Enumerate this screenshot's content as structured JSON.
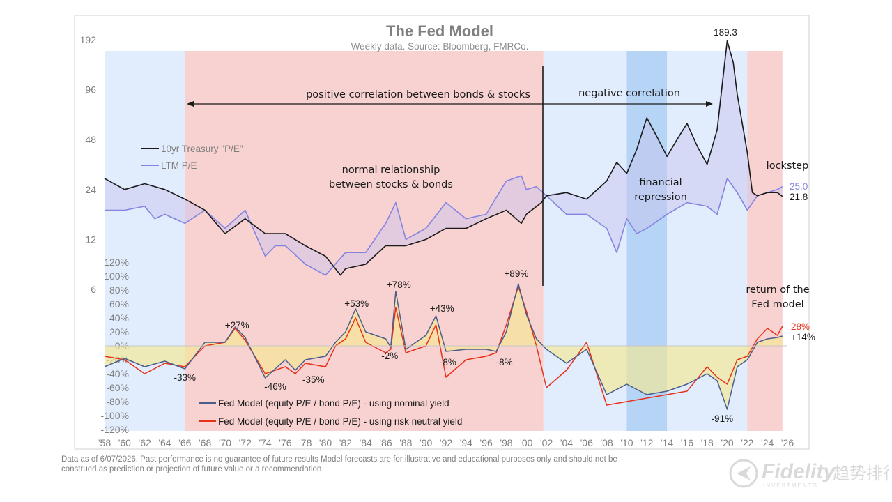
{
  "chart_data": {
    "type": "line",
    "title": "The Fed Model",
    "subtitle": "Weekly data.  Source: Bloomberg, FMRCo.",
    "x_ticks": [
      "'58",
      "'60",
      "'62",
      "'64",
      "'66",
      "'68",
      "'70",
      "'72",
      "'74",
      "'76",
      "'78",
      "'80",
      "'82",
      "'84",
      "'86",
      "'88",
      "'90",
      "'92",
      "'94",
      "'96",
      "'98",
      "'00",
      "'02",
      "'04",
      "'06",
      "'08",
      "'10",
      "'12",
      "'14",
      "'16",
      "'18",
      "'20",
      "'22",
      "'24",
      "'26"
    ],
    "top_panel": {
      "y_scale": "log2",
      "ylim": [
        6,
        192
      ],
      "y_ticks": [
        "192",
        "96",
        "48",
        "24",
        "12",
        "6"
      ],
      "y_tick_values": [
        192,
        96,
        48,
        24,
        12,
        6
      ],
      "series": [
        {
          "name": "10yr Treasury \"P/E\"",
          "color": "#1a1a1a",
          "points": [
            [
              1958,
              28
            ],
            [
              1960,
              24
            ],
            [
              1962,
              26
            ],
            [
              1964,
              24
            ],
            [
              1966,
              21
            ],
            [
              1968,
              18
            ],
            [
              1970,
              13
            ],
            [
              1972,
              16
            ],
            [
              1974,
              13
            ],
            [
              1976,
              13
            ],
            [
              1978,
              11
            ],
            [
              1980,
              9.5
            ],
            [
              1981.5,
              7.3
            ],
            [
              1982,
              8
            ],
            [
              1984,
              8.5
            ],
            [
              1986,
              11
            ],
            [
              1987.5,
              11
            ],
            [
              1988,
              11
            ],
            [
              1990,
              12
            ],
            [
              1992,
              14
            ],
            [
              1994,
              14
            ],
            [
              1996,
              16
            ],
            [
              1998,
              18
            ],
            [
              1999.5,
              15
            ],
            [
              2000,
              17
            ],
            [
              2001.5,
              20
            ],
            [
              2002,
              22
            ],
            [
              2004,
              23
            ],
            [
              2006,
              21
            ],
            [
              2008,
              27
            ],
            [
              2009,
              35
            ],
            [
              2010,
              30
            ],
            [
              2011,
              42
            ],
            [
              2012,
              65
            ],
            [
              2013,
              50
            ],
            [
              2014,
              38
            ],
            [
              2015,
              48
            ],
            [
              2016,
              60
            ],
            [
              2017,
              44
            ],
            [
              2018,
              34
            ],
            [
              2019,
              55
            ],
            [
              2020,
              189.3
            ],
            [
              2020.6,
              140
            ],
            [
              2021,
              90
            ],
            [
              2022,
              40
            ],
            [
              2022.5,
              23
            ],
            [
              2023,
              22
            ],
            [
              2024,
              23
            ],
            [
              2025,
              23
            ],
            [
              2025.5,
              21.8
            ]
          ]
        },
        {
          "name": "LTM P/E",
          "color": "#8484e0",
          "points": [
            [
              1958,
              18
            ],
            [
              1960,
              18
            ],
            [
              1962,
              19
            ],
            [
              1963,
              16
            ],
            [
              1964,
              17
            ],
            [
              1966,
              15
            ],
            [
              1968,
              18
            ],
            [
              1970,
              14
            ],
            [
              1972,
              18
            ],
            [
              1974,
              9.5
            ],
            [
              1975,
              11
            ],
            [
              1976,
              11
            ],
            [
              1978,
              8.5
            ],
            [
              1980,
              7.3
            ],
            [
              1982,
              10
            ],
            [
              1984,
              10
            ],
            [
              1986,
              15
            ],
            [
              1987,
              20
            ],
            [
              1988,
              12
            ],
            [
              1990,
              14
            ],
            [
              1992,
              20
            ],
            [
              1994,
              16
            ],
            [
              1996,
              17
            ],
            [
              1998,
              27
            ],
            [
              1999.5,
              29
            ],
            [
              2000,
              24
            ],
            [
              2001,
              25
            ],
            [
              2002,
              22
            ],
            [
              2004,
              17
            ],
            [
              2006,
              17
            ],
            [
              2008,
              14
            ],
            [
              2009,
              10
            ],
            [
              2010,
              16
            ],
            [
              2011,
              13
            ],
            [
              2012,
              14
            ],
            [
              2014,
              17
            ],
            [
              2016,
              20
            ],
            [
              2018,
              19
            ],
            [
              2019,
              17
            ],
            [
              2020,
              28
            ],
            [
              2021,
              23
            ],
            [
              2022,
              18
            ],
            [
              2023,
              22
            ],
            [
              2024,
              23
            ],
            [
              2025,
              24
            ],
            [
              2025.5,
              25.0
            ]
          ]
        }
      ]
    },
    "bottom_panel": {
      "ylim": [
        -120,
        120
      ],
      "y_unit": "%",
      "y_ticks": [
        "120%",
        "100%",
        "80%",
        "60%",
        "40%",
        "20%",
        "0%",
        "-20%",
        "-40%",
        "-60%",
        "-80%",
        "-100%",
        "-120%"
      ],
      "y_tick_values": [
        120,
        100,
        80,
        60,
        40,
        20,
        0,
        -20,
        -40,
        -60,
        -80,
        -100,
        -120
      ],
      "series": [
        {
          "name": "Fed Model (equity P/E / bond P/E) - using nominal yield",
          "color": "#4a5e8c",
          "points": [
            [
              1958,
              -30
            ],
            [
              1960,
              -18
            ],
            [
              1962,
              -30
            ],
            [
              1964,
              -22
            ],
            [
              1966,
              -33
            ],
            [
              1968,
              5
            ],
            [
              1970,
              5
            ],
            [
              1971,
              27
            ],
            [
              1972,
              12
            ],
            [
              1974,
              -46
            ],
            [
              1976,
              -20
            ],
            [
              1977,
              -35
            ],
            [
              1978,
              -20
            ],
            [
              1980,
              -15
            ],
            [
              1981,
              5
            ],
            [
              1982,
              20
            ],
            [
              1983,
              53
            ],
            [
              1984,
              20
            ],
            [
              1986,
              10
            ],
            [
              1986.5,
              -2
            ],
            [
              1987,
              78
            ],
            [
              1988,
              -5
            ],
            [
              1990,
              15
            ],
            [
              1991,
              43
            ],
            [
              1992,
              -8
            ],
            [
              1994,
              -5
            ],
            [
              1996,
              -5
            ],
            [
              1997,
              -8
            ],
            [
              1998,
              20
            ],
            [
              1999.2,
              89
            ],
            [
              2000,
              45
            ],
            [
              2001,
              10
            ],
            [
              2002,
              -5
            ],
            [
              2004,
              -25
            ],
            [
              2006,
              -5
            ],
            [
              2008,
              -70
            ],
            [
              2010,
              -55
            ],
            [
              2012,
              -70
            ],
            [
              2014,
              -65
            ],
            [
              2016,
              -55
            ],
            [
              2018,
              -40
            ],
            [
              2019,
              -50
            ],
            [
              2020,
              -91
            ],
            [
              2021,
              -30
            ],
            [
              2022,
              -20
            ],
            [
              2023,
              5
            ],
            [
              2024,
              10
            ],
            [
              2025,
              12
            ],
            [
              2025.5,
              14
            ]
          ]
        },
        {
          "name": "Fed Model (equity P/E / bond P/E) - using risk neutral yield",
          "color": "#e8311a",
          "points": [
            [
              1958,
              -15
            ],
            [
              1960,
              -20
            ],
            [
              1962,
              -40
            ],
            [
              1964,
              -25
            ],
            [
              1966,
              -30
            ],
            [
              1968,
              0
            ],
            [
              1970,
              5
            ],
            [
              1971,
              25
            ],
            [
              1972,
              8
            ],
            [
              1974,
              -40
            ],
            [
              1976,
              -30
            ],
            [
              1977,
              -40
            ],
            [
              1978,
              -25
            ],
            [
              1980,
              -30
            ],
            [
              1981,
              0
            ],
            [
              1982,
              10
            ],
            [
              1983,
              40
            ],
            [
              1984,
              5
            ],
            [
              1986,
              -10
            ],
            [
              1986.5,
              -5
            ],
            [
              1987,
              55
            ],
            [
              1988,
              -10
            ],
            [
              1990,
              0
            ],
            [
              1991,
              30
            ],
            [
              1992,
              -45
            ],
            [
              1994,
              -20
            ],
            [
              1996,
              -15
            ],
            [
              1997,
              -10
            ],
            [
              1998,
              30
            ],
            [
              1999.2,
              85
            ],
            [
              2000,
              50
            ],
            [
              2001,
              0
            ],
            [
              2002,
              -60
            ],
            [
              2004,
              -35
            ],
            [
              2006,
              5
            ],
            [
              2008,
              -85
            ],
            [
              2010,
              -80
            ],
            [
              2012,
              -75
            ],
            [
              2014,
              -70
            ],
            [
              2016,
              -65
            ],
            [
              2018,
              -30
            ],
            [
              2019,
              -45
            ],
            [
              2020,
              -55
            ],
            [
              2021,
              -20
            ],
            [
              2022,
              -15
            ],
            [
              2023,
              10
            ],
            [
              2024,
              25
            ],
            [
              2025,
              15
            ],
            [
              2025.5,
              28
            ]
          ]
        }
      ]
    },
    "annotations": {
      "peak_label": "189.3",
      "positive_corr": "positive correlation between bonds & stocks",
      "negative_corr": "negative correlation",
      "normal_rel_1": "normal relationship",
      "normal_rel_2": "between stocks & bonds",
      "fin_rep_1": "financial",
      "fin_rep_2": "repression",
      "lockstep": "lockstep",
      "ltm_last": "25.0",
      "tsy_last": "21.8",
      "return_1": "return of the",
      "return_2": "Fed model",
      "rn_last": "28%",
      "nom_last": "+14%",
      "pcts": [
        {
          "text": "+27%",
          "year": 1971.2,
          "v": 30
        },
        {
          "text": "-33%",
          "year": 1966.0,
          "v": -45
        },
        {
          "text": "-46%",
          "year": 1975.0,
          "v": -58
        },
        {
          "text": "-35%",
          "year": 1978.8,
          "v": -48
        },
        {
          "text": "+53%",
          "year": 1983.1,
          "v": 61
        },
        {
          "text": "+78%",
          "year": 1987.3,
          "v": 88
        },
        {
          "text": "-2%",
          "year": 1986.4,
          "v": -14
        },
        {
          "text": "+43%",
          "year": 1991.6,
          "v": 54
        },
        {
          "text": "-8%",
          "year": 1992.2,
          "v": -23
        },
        {
          "text": "+89%",
          "year": 1999.0,
          "v": 104
        },
        {
          "text": "-8%",
          "year": 1997.8,
          "v": -23
        },
        {
          "text": "-91%",
          "year": 2019.5,
          "v": -104
        }
      ]
    },
    "legend_top": [
      "10yr Treasury \"P/E\"",
      "LTM P/E"
    ],
    "legend_bottom": [
      "Fed Model (equity P/E / bond P/E) - using nominal yield",
      "Fed Model (equity P/E / bond P/E) - using risk neutral yield"
    ],
    "background_regimes": [
      {
        "start": 1958,
        "end": 1966,
        "color": "blue-light"
      },
      {
        "start": 1966,
        "end": 2001.7,
        "color": "red"
      },
      {
        "start": 2001.7,
        "end": 2010,
        "color": "blue-light"
      },
      {
        "start": 2010,
        "end": 2014,
        "color": "blue"
      },
      {
        "start": 2014,
        "end": 2022,
        "color": "blue-light"
      },
      {
        "start": 2022,
        "end": 2025.5,
        "color": "red"
      }
    ]
  },
  "footnote": "Data as of 6/07/2026. Past performance is no guarantee of future results Model forecasts are for illustrative and educational purposes only and should not be construed as prediction or projection of future value or a recommendation.",
  "logo": {
    "brand": "Fidelity",
    "sub": "INVESTMENTS",
    "watermark": "趋势排行"
  }
}
